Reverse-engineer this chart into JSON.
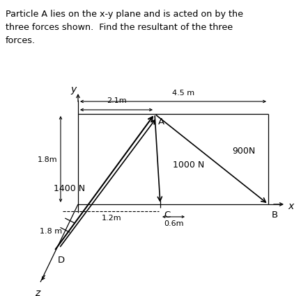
{
  "title_line1": "Particle A lies on the x-y plane and is acted on by the",
  "title_line2": "three forces shown.  Find the resultant of the three",
  "title_line3": "forces.",
  "bg_color": "#ffffff",
  "text_color": "#000000",
  "force_1400_label": "1400 N",
  "force_900_label": "900N",
  "force_1000_label": "1000 N",
  "dim_45": "4.5 m",
  "dim_21": "2.1m",
  "dim_18left": "1.8m",
  "dim_18diag": "1.8 m",
  "dim_06": "0.6m",
  "dim_12": "1.2m",
  "axis_x_label": "x",
  "axis_y_label": "y",
  "axis_z_label": "z",
  "point_A_label": "A",
  "point_B_label": "B",
  "point_C_label": "C",
  "point_D_label": "D",
  "figsize": [
    4.42,
    4.27
  ],
  "dpi": 100
}
